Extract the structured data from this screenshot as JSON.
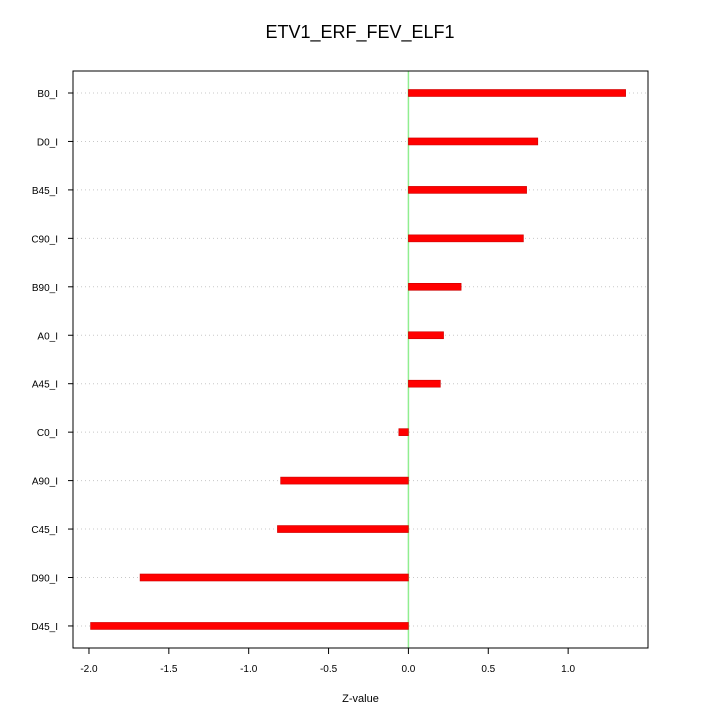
{
  "chart_data": {
    "type": "bar",
    "orientation": "horizontal",
    "title": "ETV1_ERF_FEV_ELF1",
    "xlabel": "Z-value",
    "ylabel": "",
    "xlim": [
      -2.1,
      1.5
    ],
    "xticks": [
      -2.0,
      -1.5,
      -1.0,
      -0.5,
      0.0,
      0.5,
      1.0
    ],
    "xtick_labels": [
      "-2.0",
      "-1.5",
      "-1.0",
      "-0.5",
      "0.0",
      "0.5",
      "1.0"
    ],
    "categories": [
      "B0_I",
      "D0_I",
      "B45_I",
      "C90_I",
      "B90_I",
      "A0_I",
      "A45_I",
      "C0_I",
      "A90_I",
      "C45_I",
      "D90_I",
      "D45_I"
    ],
    "values": [
      1.36,
      0.81,
      0.74,
      0.72,
      0.33,
      0.22,
      0.2,
      -0.06,
      -0.8,
      -0.82,
      -1.68,
      -1.99
    ],
    "grid": "horizontal dotted",
    "reference_line": 0.0,
    "colors": {
      "bar": "#ff0000",
      "bar_edge": "#cc0000",
      "zero_line": "#90ee90",
      "grid": "#c8c8c8",
      "axis": "#000000"
    }
  }
}
